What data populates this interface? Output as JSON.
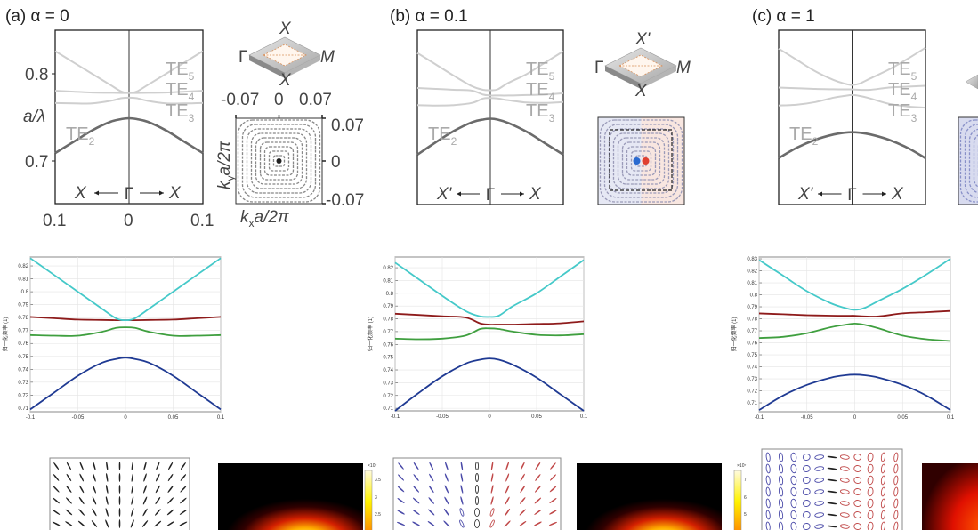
{
  "panels": [
    {
      "label": "(a) α = 0",
      "band": {
        "ylabel": "a/λ",
        "yticks": [
          "0.8",
          "0.7"
        ],
        "xticks": [
          "0.1",
          "0",
          "0.1"
        ],
        "path": {
          "left": "X",
          "center": "Γ",
          "right": "X"
        }
      },
      "te_labels": [
        {
          "base": "TE",
          "sub": "5"
        },
        {
          "base": "TE",
          "sub": "4"
        },
        {
          "base": "TE",
          "sub": "3"
        },
        {
          "base": "TE",
          "sub": "2"
        }
      ],
      "bz": {
        "top": "X",
        "left": "Γ",
        "right": "M",
        "bottom": "X"
      },
      "inset": {
        "xticks": [
          "-0.07",
          "0",
          "0.07"
        ],
        "yticks": [
          "0.07",
          "0",
          "-0.07"
        ],
        "ylabel": {
          "k": "k",
          "sub": "y",
          "rest": "a/2π"
        },
        "xlabel": {
          "k": "k",
          "sub": "x",
          "rest": "a/2π"
        }
      },
      "colorbar": {
        "exponent": "×10⁷",
        "ticks": [
          "3.5",
          "3",
          "2.5"
        ]
      }
    },
    {
      "label": "(b) α = 0.1",
      "band": {
        "path": {
          "left": "X'",
          "center": "Γ",
          "right": "X"
        }
      },
      "te_labels": [
        {
          "base": "TE",
          "sub": "5"
        },
        {
          "base": "TE",
          "sub": "4"
        },
        {
          "base": "TE",
          "sub": "3"
        },
        {
          "base": "TE",
          "sub": "2"
        }
      ],
      "bz": {
        "top": "X'",
        "left": "Γ",
        "right": "M",
        "bottom": "X"
      },
      "colorbar": {
        "exponent": "×10⁷",
        "ticks": [
          "7",
          "6",
          "5"
        ]
      }
    },
    {
      "label": "(c) α = 1",
      "band": {
        "path": {
          "left": "X'",
          "center": "Γ",
          "right": "X"
        }
      },
      "te_labels": [
        {
          "base": "TE",
          "sub": "5"
        },
        {
          "base": "TE",
          "sub": "4"
        },
        {
          "base": "TE",
          "sub": "3"
        },
        {
          "base": "TE",
          "sub": "2"
        }
      ]
    }
  ],
  "colors": {
    "blue": "#1f3a93",
    "green": "#3f9f3f",
    "red": "#8e1b1b",
    "cyan": "#45c9c9",
    "band_dark": "#6b6b6b",
    "band_light": "#cfcfcf"
  },
  "chart_data": [
    {
      "type": "line",
      "panel": "a",
      "ylabel": "归一化频率 (1)",
      "x": [
        -0.1,
        -0.075,
        -0.05,
        -0.025,
        -0.01,
        0,
        0.01,
        0.025,
        0.05,
        0.075,
        0.1
      ],
      "xlim": [
        -0.1,
        0.1
      ],
      "ylim": [
        0.7072,
        0.8269
      ],
      "grid": true,
      "xticks": [
        "-0.1",
        "-0.05",
        "0",
        "0.05",
        "0.1"
      ],
      "yticks": [
        "0.71",
        "0.72",
        "0.73",
        "0.74",
        "0.75",
        "0.76",
        "0.77",
        "0.78",
        "0.79",
        "0.8",
        "0.81",
        "0.82"
      ],
      "series": [
        {
          "color": "blue",
          "values": [
            0.709,
            0.722,
            0.735,
            0.745,
            0.748,
            0.749,
            0.748,
            0.745,
            0.735,
            0.722,
            0.709
          ]
        },
        {
          "color": "green",
          "values": [
            0.7665,
            0.766,
            0.766,
            0.769,
            0.772,
            0.7725,
            0.772,
            0.769,
            0.766,
            0.766,
            0.7665
          ]
        },
        {
          "color": "red",
          "values": [
            0.7805,
            0.7795,
            0.7785,
            0.7782,
            0.778,
            0.778,
            0.778,
            0.7782,
            0.7785,
            0.7795,
            0.7805
          ]
        },
        {
          "color": "cyan",
          "values": [
            0.826,
            0.813,
            0.8,
            0.787,
            0.7795,
            0.778,
            0.7795,
            0.787,
            0.8,
            0.813,
            0.826
          ]
        }
      ]
    },
    {
      "type": "line",
      "panel": "b",
      "ylabel": "归一化频率 (1)",
      "x": [
        -0.1,
        -0.075,
        -0.05,
        -0.025,
        -0.01,
        0,
        0.01,
        0.025,
        0.05,
        0.075,
        0.1
      ],
      "xlim": [
        -0.1,
        0.1
      ],
      "ylim": [
        0.708,
        0.8284
      ],
      "grid": true,
      "xticks": [
        "-0.1",
        "-0.05",
        "0",
        "0.05",
        "0.1"
      ],
      "yticks": [
        "0.71",
        "0.72",
        "0.73",
        "0.74",
        "0.75",
        "0.76",
        "0.77",
        "0.78",
        "0.79",
        "0.8",
        "0.81",
        "0.82"
      ],
      "series": [
        {
          "color": "blue",
          "values": [
            0.708,
            0.722,
            0.735,
            0.745,
            0.748,
            0.749,
            0.748,
            0.744,
            0.734,
            0.721,
            0.708
          ]
        },
        {
          "color": "green",
          "values": [
            0.7645,
            0.764,
            0.7645,
            0.767,
            0.772,
            0.7725,
            0.772,
            0.77,
            0.7675,
            0.767,
            0.768
          ]
        },
        {
          "color": "red",
          "values": [
            0.784,
            0.783,
            0.782,
            0.781,
            0.7765,
            0.7755,
            0.7755,
            0.7755,
            0.776,
            0.7765,
            0.778
          ]
        },
        {
          "color": "cyan",
          "values": [
            0.824,
            0.811,
            0.798,
            0.786,
            0.782,
            0.7815,
            0.7825,
            0.79,
            0.8,
            0.813,
            0.826
          ]
        }
      ]
    },
    {
      "type": "line",
      "panel": "c",
      "ylabel": "归一化频率 (1)",
      "x": [
        -0.1,
        -0.075,
        -0.05,
        -0.025,
        -0.01,
        0,
        0.01,
        0.025,
        0.05,
        0.075,
        0.1
      ],
      "xlim": [
        -0.1,
        0.1
      ],
      "ylim": [
        0.7026,
        0.8315
      ],
      "grid": true,
      "xticks": [
        "-0.1",
        "-0.05",
        "0",
        "0.05",
        "0.1"
      ],
      "yticks": [
        "0.71",
        "0.72",
        "0.73",
        "0.74",
        "0.75",
        "0.76",
        "0.77",
        "0.78",
        "0.79",
        "0.8",
        "0.81",
        "0.82",
        "0.83"
      ],
      "series": [
        {
          "color": "blue",
          "values": [
            0.704,
            0.716,
            0.725,
            0.731,
            0.733,
            0.7335,
            0.733,
            0.731,
            0.725,
            0.716,
            0.704
          ]
        },
        {
          "color": "green",
          "values": [
            0.764,
            0.765,
            0.768,
            0.773,
            0.775,
            0.776,
            0.775,
            0.772,
            0.766,
            0.763,
            0.7615
          ]
        },
        {
          "color": "red",
          "values": [
            0.7845,
            0.7838,
            0.783,
            0.7826,
            0.7825,
            0.7825,
            0.782,
            0.782,
            0.7845,
            0.7855,
            0.7865
          ]
        },
        {
          "color": "cyan",
          "values": [
            0.829,
            0.816,
            0.803,
            0.793,
            0.789,
            0.7875,
            0.789,
            0.795,
            0.805,
            0.817,
            0.83
          ]
        }
      ]
    }
  ]
}
